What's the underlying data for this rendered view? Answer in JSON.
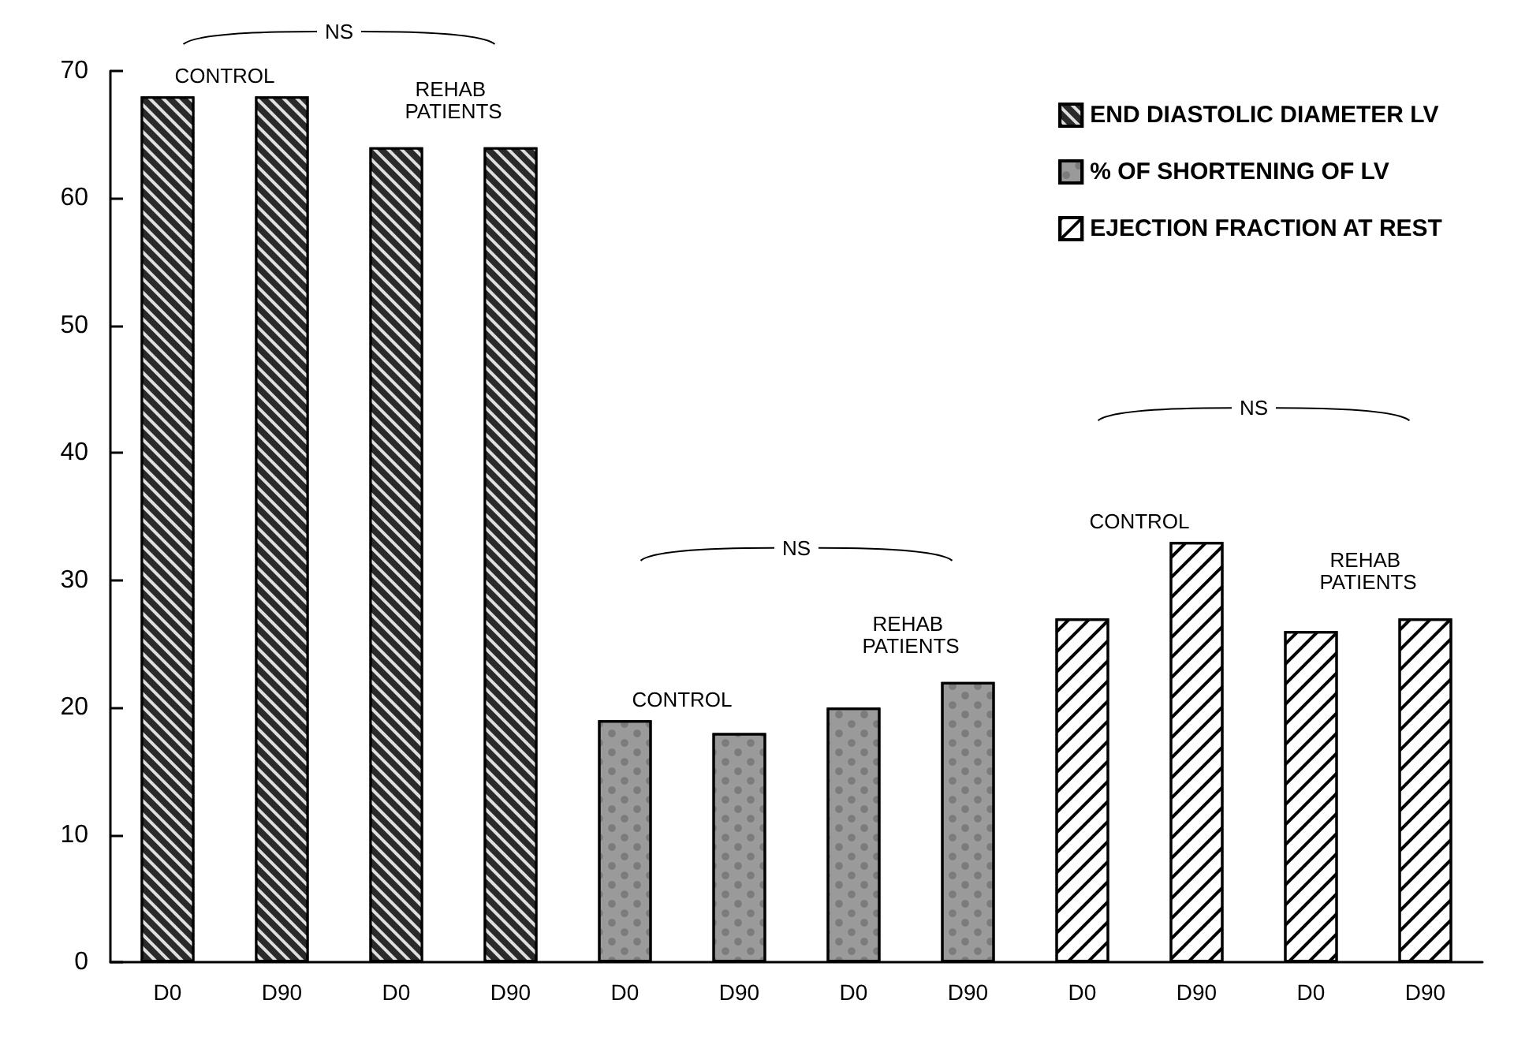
{
  "chart_data": {
    "type": "bar",
    "categories": [
      "D0",
      "D90",
      "D0",
      "D90",
      "D0",
      "D90",
      "D0",
      "D90",
      "D0",
      "D90",
      "D0",
      "D90"
    ],
    "series": [
      {
        "name": "END DIASTOLIC DIAMETER LV",
        "color": "#2a2a2a",
        "values": [
          68,
          68,
          64,
          64,
          null,
          null,
          null,
          null,
          null,
          null,
          null,
          null
        ]
      },
      {
        "name": "% OF SHORTENING OF LV",
        "color": "#9a9a9a",
        "values": [
          null,
          null,
          null,
          null,
          19,
          18,
          20,
          22,
          null,
          null,
          null,
          null
        ]
      },
      {
        "name": "EJECTION FRACTION AT REST",
        "color": "#ffffff",
        "values": [
          null,
          null,
          null,
          null,
          null,
          null,
          null,
          null,
          27,
          33,
          26,
          27
        ]
      }
    ],
    "ylim": [
      0,
      70
    ],
    "yticks": [
      0,
      10,
      20,
      30,
      40,
      50,
      60,
      70
    ],
    "grid": false,
    "legend": "top right",
    "annotations": [
      "NS",
      "CONTROL",
      "REHAB PATIENTS",
      "NS",
      "CONTROL",
      "REHAB PATIENTS",
      "NS",
      "CONTROL",
      "REHAB PATIENTS"
    ]
  }
}
